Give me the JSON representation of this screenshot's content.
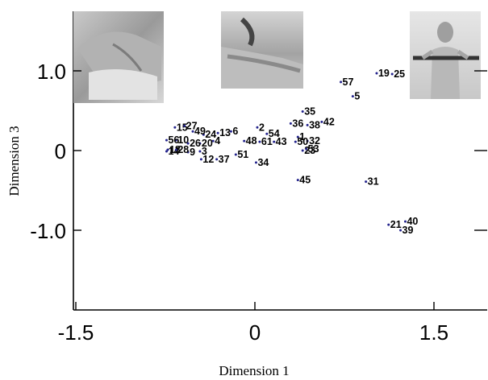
{
  "chart_data": {
    "type": "scatter",
    "xlabel": "Dimension 1",
    "ylabel": "Dimension 3",
    "xlim": [
      -1.5,
      1.9
    ],
    "ylim": [
      -2.0,
      1.75
    ],
    "x_ticks": [
      {
        "value": -1.5,
        "label": "-1.5"
      },
      {
        "value": 0,
        "label": "0"
      },
      {
        "value": 1.5,
        "label": "1.5"
      }
    ],
    "y_ticks": [
      {
        "value": 1.0,
        "label": "1.0"
      },
      {
        "value": 0,
        "label": "0"
      },
      {
        "value": -1.0,
        "label": "-1.0"
      }
    ],
    "grid": false,
    "images": [
      {
        "name": "hand-sorting-photo",
        "x": -1.5,
        "y": 1.65
      },
      {
        "name": "wrist-on-table-photo",
        "x": -0.28,
        "y": 1.65
      },
      {
        "name": "person-holding-bar-photo",
        "x": 1.3,
        "y": 1.65
      }
    ],
    "points": [
      {
        "label": "1",
        "x": 0.36,
        "y": 0.17
      },
      {
        "label": "2",
        "x": 0.02,
        "y": 0.29
      },
      {
        "label": "3",
        "x": -0.46,
        "y": -0.01
      },
      {
        "label": "4",
        "x": -0.35,
        "y": 0.12
      },
      {
        "label": "5",
        "x": 0.82,
        "y": 0.68
      },
      {
        "label": "6",
        "x": -0.2,
        "y": 0.24
      },
      {
        "label": "9",
        "x": -0.56,
        "y": -0.02
      },
      {
        "label": "10",
        "x": -0.66,
        "y": 0.13
      },
      {
        "label": "12",
        "x": -0.45,
        "y": -0.11
      },
      {
        "label": "13",
        "x": -0.31,
        "y": 0.22
      },
      {
        "label": "14",
        "x": -0.74,
        "y": -0.01
      },
      {
        "label": "15",
        "x": -0.67,
        "y": 0.29
      },
      {
        "label": "18",
        "x": -0.73,
        "y": 0.01
      },
      {
        "label": "19",
        "x": 1.02,
        "y": 0.97
      },
      {
        "label": "20",
        "x": -0.46,
        "y": 0.09
      },
      {
        "label": "21",
        "x": 1.12,
        "y": -0.93
      },
      {
        "label": "23",
        "x": 0.4,
        "y": 0.0
      },
      {
        "label": "24",
        "x": -0.43,
        "y": 0.2
      },
      {
        "label": "25",
        "x": 1.15,
        "y": 0.96
      },
      {
        "label": "26",
        "x": -0.56,
        "y": 0.09
      },
      {
        "label": "27",
        "x": -0.59,
        "y": 0.31
      },
      {
        "label": "28",
        "x": -0.66,
        "y": 0.01
      },
      {
        "label": "31",
        "x": 0.93,
        "y": -0.39
      },
      {
        "label": "32",
        "x": 0.44,
        "y": 0.12
      },
      {
        "label": "34",
        "x": 0.01,
        "y": -0.15
      },
      {
        "label": "35",
        "x": 0.4,
        "y": 0.49
      },
      {
        "label": "36",
        "x": 0.3,
        "y": 0.34
      },
      {
        "label": "37",
        "x": -0.32,
        "y": -0.11
      },
      {
        "label": "38",
        "x": 0.44,
        "y": 0.32
      },
      {
        "label": "39",
        "x": 1.22,
        "y": -1.0
      },
      {
        "label": "40",
        "x": 1.26,
        "y": -0.89
      },
      {
        "label": "42",
        "x": 0.56,
        "y": 0.36
      },
      {
        "label": "43",
        "x": 0.16,
        "y": 0.11
      },
      {
        "label": "45",
        "x": 0.36,
        "y": -0.37
      },
      {
        "label": "48",
        "x": -0.09,
        "y": 0.12
      },
      {
        "label": "49",
        "x": -0.52,
        "y": 0.24
      },
      {
        "label": "50",
        "x": 0.34,
        "y": 0.11
      },
      {
        "label": "51",
        "x": -0.16,
        "y": -0.05
      },
      {
        "label": "53",
        "x": 0.43,
        "y": 0.02
      },
      {
        "label": "54",
        "x": 0.1,
        "y": 0.21
      },
      {
        "label": "56",
        "x": -0.74,
        "y": 0.13
      },
      {
        "label": "57",
        "x": 0.72,
        "y": 0.86
      },
      {
        "label": "61",
        "x": 0.04,
        "y": 0.11
      }
    ]
  }
}
